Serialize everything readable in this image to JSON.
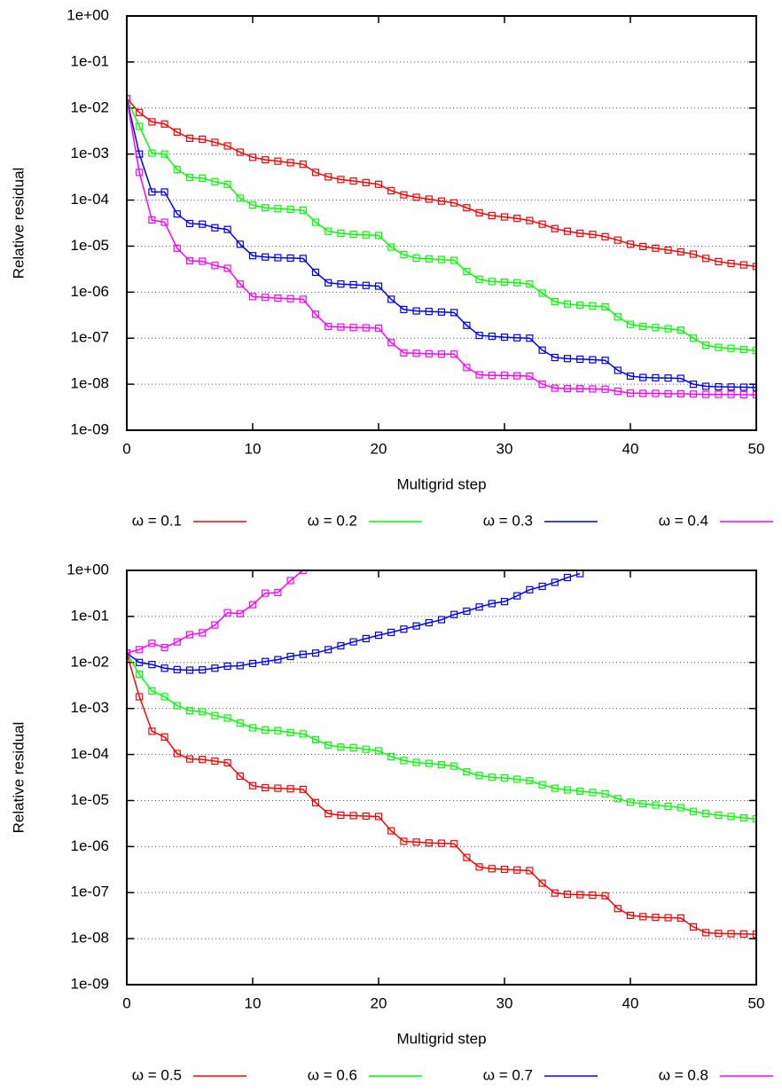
{
  "chart_data": [
    {
      "type": "line",
      "xlabel": "Multigrid step",
      "ylabel": "Relative residual",
      "ylog": true,
      "grid": true,
      "x": [
        0,
        1,
        2,
        3,
        4,
        5,
        6,
        7,
        8,
        9,
        10,
        11,
        12,
        13,
        14,
        15,
        16,
        17,
        18,
        19,
        20,
        21,
        22,
        23,
        24,
        25,
        26,
        27,
        28,
        29,
        30,
        31,
        32,
        33,
        34,
        35,
        36,
        37,
        38,
        39,
        40,
        41,
        42,
        43,
        44,
        45,
        46,
        47,
        48,
        49,
        50
      ],
      "xlim": [
        0,
        50
      ],
      "xticks": [
        0,
        10,
        20,
        30,
        40,
        50
      ],
      "ylim": [
        1e-09,
        1
      ],
      "yticks": [
        {
          "value": 1e-09,
          "label": "1e-09"
        },
        {
          "value": 1e-08,
          "label": "1e-08"
        },
        {
          "value": 1e-07,
          "label": "1e-07"
        },
        {
          "value": 1e-06,
          "label": "1e-06"
        },
        {
          "value": 1e-05,
          "label": "1e-05"
        },
        {
          "value": 0.0001,
          "label": "1e-04"
        },
        {
          "value": 0.001,
          "label": "1e-03"
        },
        {
          "value": 0.01,
          "label": "1e-02"
        },
        {
          "value": 0.1,
          "label": "1e-01"
        },
        {
          "value": 1,
          "label": "1e+00"
        }
      ],
      "series": [
        {
          "name": "ω = 0.1",
          "color": "#ff0000",
          "values": [
            0.016,
            0.008,
            0.005,
            0.0045,
            0.003,
            0.0022,
            0.0021,
            0.0018,
            0.0015,
            0.0011,
            0.00085,
            0.00075,
            0.0007,
            0.00065,
            0.0006,
            0.0004,
            0.00032,
            0.00028,
            0.00026,
            0.00024,
            0.00022,
            0.00016,
            0.00013,
            0.000115,
            0.000105,
            9.5e-05,
            8.7e-05,
            6.8e-05,
            5.3e-05,
            4.6e-05,
            4.3e-05,
            4e-05,
            3.6e-05,
            3e-05,
            2.4e-05,
            2.1e-05,
            1.9e-05,
            1.8e-05,
            1.6e-05,
            1.35e-05,
            1.1e-05,
            9.8e-06,
            9e-06,
            8.2e-06,
            7.5e-06,
            6.7e-06,
            5.4e-06,
            4.6e-06,
            4.2e-06,
            3.9e-06,
            3.6e-06
          ]
        },
        {
          "name": "ω = 0.2",
          "color": "#00ff00",
          "values": [
            0.016,
            0.004,
            0.00105,
            0.001,
            0.00046,
            0.00031,
            0.0003,
            0.00025,
            0.00022,
            0.00011,
            7.8e-05,
            6.8e-05,
            6.5e-05,
            6.3e-05,
            6e-05,
            3.3e-05,
            2.1e-05,
            1.9e-05,
            1.8e-05,
            1.75e-05,
            1.7e-05,
            9.5e-06,
            6.5e-06,
            5.5e-06,
            5.3e-06,
            5.1e-06,
            4.9e-06,
            2.8e-06,
            1.9e-06,
            1.7e-06,
            1.65e-06,
            1.6e-06,
            1.5e-06,
            9.5e-07,
            6.2e-07,
            5.5e-07,
            5.2e-07,
            5e-07,
            4.8e-07,
            2.9e-07,
            2e-07,
            1.8e-07,
            1.7e-07,
            1.6e-07,
            1.5e-07,
            1e-07,
            7e-08,
            6.3e-08,
            6e-08,
            5.7e-08,
            5.4e-08
          ]
        },
        {
          "name": "ω = 0.3",
          "color": "#0000ff",
          "values": [
            0.016,
            0.001,
            0.00015,
            0.00015,
            5e-05,
            3.1e-05,
            3e-05,
            2.5e-05,
            2.3e-05,
            1.1e-05,
            6.2e-06,
            5.8e-06,
            5.6e-06,
            5.5e-06,
            5.4e-06,
            2.7e-06,
            1.6e-06,
            1.5e-06,
            1.45e-06,
            1.4e-06,
            1.35e-06,
            7e-07,
            4.2e-07,
            3.9e-07,
            3.8e-07,
            3.7e-07,
            3.6e-07,
            1.9e-07,
            1.15e-07,
            1.1e-07,
            1.05e-07,
            1.02e-07,
            1e-07,
            5.5e-08,
            3.8e-08,
            3.6e-08,
            3.5e-08,
            3.4e-08,
            3.3e-08,
            2e-08,
            1.5e-08,
            1.4e-08,
            1.38e-08,
            1.36e-08,
            1.34e-08,
            1e-08,
            9e-09,
            8.8e-09,
            8.7e-09,
            8.6e-09,
            8.5e-09
          ]
        },
        {
          "name": "ω = 0.4",
          "color": "#ff00ff",
          "values": [
            0.016,
            0.0004,
            3.7e-05,
            3.3e-05,
            9e-06,
            4.8e-06,
            4.7e-06,
            3.8e-06,
            3.3e-06,
            1.5e-06,
            8e-07,
            7.7e-07,
            7.4e-07,
            7.2e-07,
            7e-07,
            3.3e-07,
            1.8e-07,
            1.75e-07,
            1.7e-07,
            1.68e-07,
            1.65e-07,
            8e-08,
            4.8e-08,
            4.7e-08,
            4.6e-08,
            4.5e-08,
            4.5e-08,
            2.3e-08,
            1.6e-08,
            1.55e-08,
            1.55e-08,
            1.52e-08,
            1.5e-08,
            1e-08,
            8.2e-09,
            8e-09,
            8e-09,
            7.9e-09,
            7.8e-09,
            7e-09,
            6.4e-09,
            6.3e-09,
            6.3e-09,
            6.2e-09,
            6.2e-09,
            6.1e-09,
            6e-09,
            6e-09,
            6e-09,
            5.9e-09,
            5.9e-09
          ]
        }
      ]
    },
    {
      "type": "line",
      "xlabel": "Multigrid step",
      "ylabel": "Relative residual",
      "ylog": true,
      "grid": true,
      "x": [
        0,
        1,
        2,
        3,
        4,
        5,
        6,
        7,
        8,
        9,
        10,
        11,
        12,
        13,
        14,
        15,
        16,
        17,
        18,
        19,
        20,
        21,
        22,
        23,
        24,
        25,
        26,
        27,
        28,
        29,
        30,
        31,
        32,
        33,
        34,
        35,
        36,
        37,
        38,
        39,
        40,
        41,
        42,
        43,
        44,
        45,
        46,
        47,
        48,
        49,
        50
      ],
      "xlim": [
        0,
        50
      ],
      "xticks": [
        0,
        10,
        20,
        30,
        40,
        50
      ],
      "ylim": [
        1e-09,
        1
      ],
      "yticks": [
        {
          "value": 1e-09,
          "label": "1e-09"
        },
        {
          "value": 1e-08,
          "label": "1e-08"
        },
        {
          "value": 1e-07,
          "label": "1e-07"
        },
        {
          "value": 1e-06,
          "label": "1e-06"
        },
        {
          "value": 1e-05,
          "label": "1e-05"
        },
        {
          "value": 0.0001,
          "label": "1e-04"
        },
        {
          "value": 0.001,
          "label": "1e-03"
        },
        {
          "value": 0.01,
          "label": "1e-02"
        },
        {
          "value": 0.1,
          "label": "1e-01"
        },
        {
          "value": 1,
          "label": "1e+00"
        }
      ],
      "series": [
        {
          "name": "ω = 0.5",
          "color": "#ff0000",
          "values": [
            0.016,
            0.0018,
            0.00032,
            0.00024,
            0.000105,
            8e-05,
            7.8e-05,
            7.2e-05,
            6.6e-05,
            3.4e-05,
            2.1e-05,
            1.9e-05,
            1.85e-05,
            1.8e-05,
            1.75e-05,
            9e-06,
            5.2e-06,
            4.8e-06,
            4.7e-06,
            4.6e-06,
            4.5e-06,
            2.2e-06,
            1.3e-06,
            1.25e-06,
            1.2e-06,
            1.18e-06,
            1.15e-06,
            5.8e-07,
            3.6e-07,
            3.3e-07,
            3.2e-07,
            3.1e-07,
            3e-07,
            1.6e-07,
            9.8e-08,
            9.2e-08,
            9e-08,
            8.8e-08,
            8.5e-08,
            4.5e-08,
            3.2e-08,
            3e-08,
            2.9e-08,
            2.85e-08,
            2.8e-08,
            1.8e-08,
            1.35e-08,
            1.3e-08,
            1.28e-08,
            1.26e-08,
            1.25e-08
          ]
        },
        {
          "name": "ω = 0.6",
          "color": "#00ff00",
          "values": [
            0.016,
            0.0055,
            0.0024,
            0.0018,
            0.00115,
            0.0009,
            0.00085,
            0.0007,
            0.00062,
            0.00048,
            0.00038,
            0.00034,
            0.00033,
            0.0003,
            0.00028,
            0.00021,
            0.00016,
            0.000145,
            0.00014,
            0.00013,
            0.00012,
            9e-05,
            7.4e-05,
            6.7e-05,
            6.4e-05,
            6e-05,
            5.6e-05,
            4.2e-05,
            3.5e-05,
            3.2e-05,
            3.1e-05,
            2.9e-05,
            2.7e-05,
            2.2e-05,
            1.85e-05,
            1.7e-05,
            1.6e-05,
            1.5e-05,
            1.4e-05,
            1.1e-05,
            9.2e-06,
            8.5e-06,
            8e-06,
            7.5e-06,
            7e-06,
            5.8e-06,
            5.2e-06,
            4.8e-06,
            4.5e-06,
            4.2e-06,
            4e-06
          ]
        },
        {
          "name": "ω = 0.7",
          "color": "#0000ff",
          "values": [
            0.016,
            0.01,
            0.009,
            0.0075,
            0.007,
            0.0068,
            0.0069,
            0.0075,
            0.0083,
            0.0085,
            0.0095,
            0.0105,
            0.0115,
            0.0135,
            0.015,
            0.016,
            0.019,
            0.023,
            0.028,
            0.033,
            0.039,
            0.045,
            0.053,
            0.062,
            0.073,
            0.085,
            0.11,
            0.13,
            0.16,
            0.19,
            0.21,
            0.28,
            0.38,
            0.45,
            0.55,
            0.7,
            0.85,
            null,
            null,
            null,
            null,
            null,
            null,
            null,
            null,
            null,
            null,
            null,
            null,
            null,
            null
          ]
        },
        {
          "name": "ω = 0.8",
          "color": "#ff00ff",
          "values": [
            0.016,
            0.019,
            0.026,
            0.021,
            0.028,
            0.04,
            0.044,
            0.065,
            0.12,
            0.115,
            0.18,
            0.32,
            0.33,
            0.6,
            1,
            null,
            null,
            null,
            null,
            null,
            null,
            null,
            null,
            null,
            null,
            null,
            null,
            null,
            null,
            null,
            null,
            null,
            null,
            null,
            null,
            null,
            null,
            null,
            null,
            null,
            null,
            null,
            null,
            null,
            null,
            null,
            null,
            null,
            null,
            null,
            null
          ]
        }
      ]
    }
  ]
}
